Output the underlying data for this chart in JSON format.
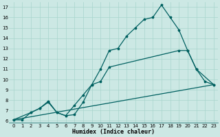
{
  "xlabel": "Humidex (Indice chaleur)",
  "bg_color": "#cce8e4",
  "grid_color": "#a8d4cc",
  "line_color": "#006060",
  "xlim": [
    -0.5,
    23.5
  ],
  "ylim": [
    5.8,
    17.5
  ],
  "xticks": [
    0,
    1,
    2,
    3,
    4,
    5,
    6,
    7,
    8,
    9,
    10,
    11,
    12,
    13,
    14,
    15,
    16,
    17,
    18,
    19,
    20,
    21,
    22,
    23
  ],
  "yticks": [
    6,
    7,
    8,
    9,
    10,
    11,
    12,
    13,
    14,
    15,
    16,
    17
  ],
  "curve1_x": [
    0,
    1,
    2,
    3,
    4,
    5,
    6,
    7,
    8,
    9,
    10,
    11,
    12,
    13,
    14,
    15,
    16,
    17,
    18,
    19,
    20,
    21,
    22,
    23
  ],
  "curve1_y": [
    6.1,
    6.1,
    6.8,
    7.2,
    7.8,
    6.8,
    6.5,
    6.6,
    7.8,
    9.5,
    11.0,
    12.8,
    13.0,
    14.2,
    15.0,
    15.8,
    16.0,
    17.2,
    16.0,
    14.8,
    12.8,
    11.0,
    9.8,
    9.5
  ],
  "curve2_x": [
    0,
    2,
    3,
    4,
    5,
    6,
    7,
    8,
    9,
    10,
    11,
    19,
    20,
    21,
    23
  ],
  "curve2_y": [
    6.1,
    6.8,
    7.2,
    7.9,
    6.8,
    6.5,
    7.5,
    8.5,
    9.5,
    9.8,
    11.2,
    12.8,
    12.8,
    11.0,
    9.5
  ],
  "curve3_x": [
    0,
    23
  ],
  "curve3_y": [
    6.1,
    9.5
  ],
  "markersize": 2.5,
  "linewidth": 0.9
}
